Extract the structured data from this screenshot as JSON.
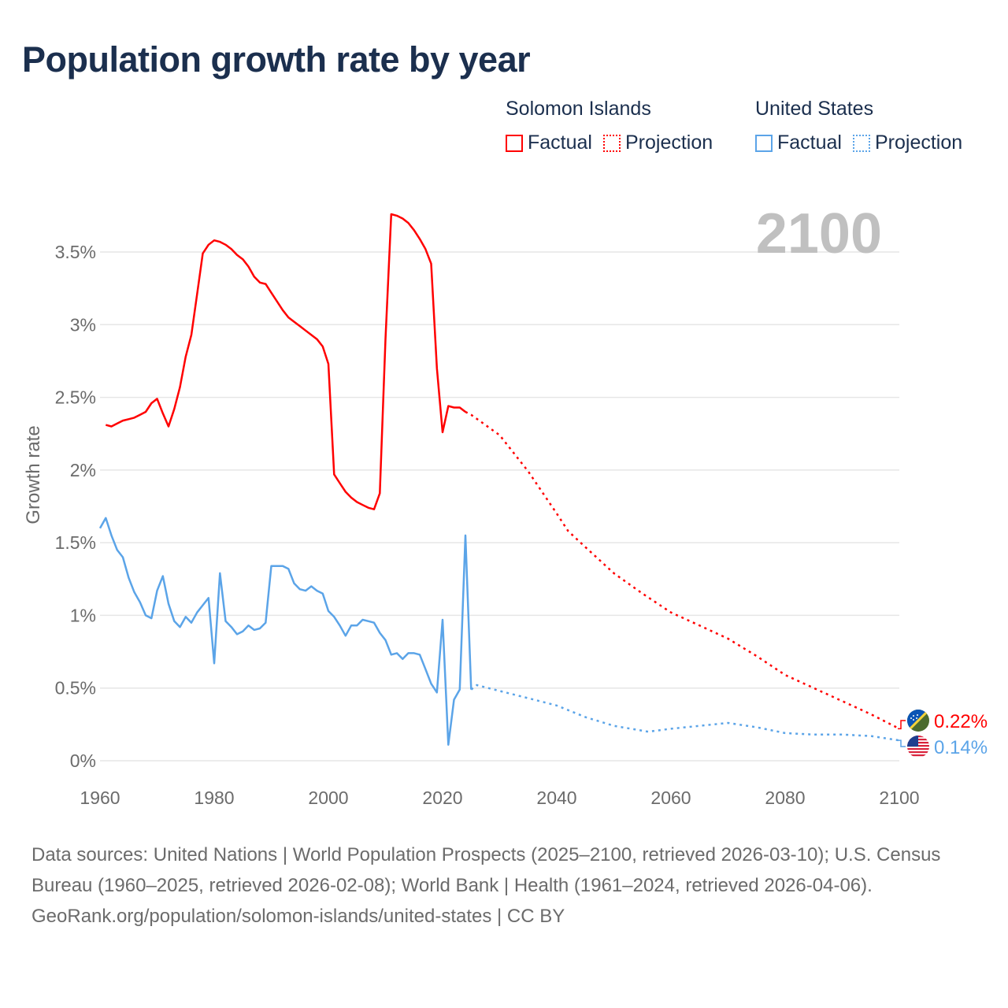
{
  "title": "Population growth rate by year",
  "legend": {
    "groups": [
      {
        "name": "Solomon Islands",
        "factual": "Factual",
        "projection": "Projection",
        "color": "#ff0000"
      },
      {
        "name": "United States",
        "factual": "Factual",
        "projection": "Projection",
        "color": "#5ba4e8"
      }
    ]
  },
  "footer": {
    "sources": "Data sources: United Nations | World Population Prospects (2025–2100, retrieved 2026-03-10); U.S. Census Bureau (1960–2025, retrieved 2026-02-08); World Bank | Health (1961–2024, retrieved 2026-04-06).",
    "credit": "GeoRank.org/population/solomon-islands/united-states | CC BY"
  },
  "chart_data": {
    "type": "line",
    "title": "Population growth rate by year",
    "ylabel": "Growth rate",
    "xlabel": "",
    "current_year_label": "2100",
    "xlim": [
      1960,
      2100
    ],
    "ylim": [
      0,
      3.5
    ],
    "x_ticks": [
      "1960",
      "1980",
      "2000",
      "2020",
      "2040",
      "2060",
      "2080",
      "2100"
    ],
    "y_ticks": [
      "0%",
      "0.5%",
      "1%",
      "1.5%",
      "2%",
      "2.5%",
      "3%",
      "3.5%"
    ],
    "grid": true,
    "series": [
      {
        "name": "Solomon Islands",
        "color": "#ff0000",
        "end_label": "0.22%",
        "factual": {
          "x": [
            1961,
            1962,
            1963,
            1964,
            1965,
            1966,
            1967,
            1968,
            1969,
            1970,
            1971,
            1972,
            1973,
            1974,
            1975,
            1976,
            1977,
            1978,
            1979,
            1980,
            1981,
            1982,
            1983,
            1984,
            1985,
            1986,
            1987,
            1988,
            1989,
            1990,
            1991,
            1992,
            1993,
            1994,
            1995,
            1996,
            1997,
            1998,
            1999,
            2000,
            2001,
            2002,
            2003,
            2004,
            2005,
            2006,
            2007,
            2008,
            2009,
            2010,
            2011,
            2012,
            2013,
            2014,
            2015,
            2016,
            2017,
            2018,
            2019,
            2020,
            2021,
            2022,
            2023,
            2024
          ],
          "y": [
            2.31,
            2.3,
            2.32,
            2.34,
            2.35,
            2.36,
            2.38,
            2.4,
            2.46,
            2.49,
            2.39,
            2.3,
            2.42,
            2.57,
            2.78,
            2.93,
            3.21,
            3.49,
            3.55,
            3.58,
            3.57,
            3.55,
            3.52,
            3.48,
            3.45,
            3.4,
            3.33,
            3.29,
            3.28,
            3.22,
            3.16,
            3.1,
            3.05,
            3.02,
            2.99,
            2.96,
            2.93,
            2.9,
            2.85,
            2.73,
            1.97,
            1.91,
            1.85,
            1.81,
            1.78,
            1.76,
            1.74,
            1.73,
            1.84,
            2.9,
            3.76,
            3.75,
            3.73,
            3.7,
            3.65,
            3.59,
            3.52,
            3.42,
            2.7,
            2.26,
            2.44,
            2.43,
            2.43,
            2.4
          ]
        },
        "projection": {
          "x": [
            2024,
            2025,
            2030,
            2035,
            2040,
            2042,
            2045,
            2050,
            2055,
            2060,
            2065,
            2070,
            2075,
            2080,
            2085,
            2090,
            2095,
            2100
          ],
          "y": [
            2.4,
            2.38,
            2.24,
            1.99,
            1.7,
            1.58,
            1.47,
            1.29,
            1.15,
            1.02,
            0.93,
            0.84,
            0.72,
            0.59,
            0.5,
            0.41,
            0.32,
            0.22
          ]
        }
      },
      {
        "name": "United States",
        "color": "#5ba4e8",
        "end_label": "0.14%",
        "factual": {
          "x": [
            1960,
            1961,
            1962,
            1963,
            1964,
            1965,
            1966,
            1967,
            1968,
            1969,
            1970,
            1971,
            1972,
            1973,
            1974,
            1975,
            1976,
            1977,
            1978,
            1979,
            1980,
            1981,
            1982,
            1983,
            1984,
            1985,
            1986,
            1987,
            1988,
            1989,
            1990,
            1991,
            1992,
            1993,
            1994,
            1995,
            1996,
            1997,
            1998,
            1999,
            2000,
            2001,
            2002,
            2003,
            2004,
            2005,
            2006,
            2007,
            2008,
            2009,
            2010,
            2011,
            2012,
            2013,
            2014,
            2015,
            2016,
            2017,
            2018,
            2019,
            2020,
            2021,
            2022,
            2023,
            2024,
            2025
          ],
          "y": [
            1.6,
            1.67,
            1.55,
            1.45,
            1.4,
            1.26,
            1.16,
            1.09,
            1.0,
            0.98,
            1.17,
            1.27,
            1.08,
            0.96,
            0.92,
            0.99,
            0.95,
            1.02,
            1.07,
            1.12,
            0.67,
            1.29,
            0.96,
            0.92,
            0.87,
            0.89,
            0.93,
            0.9,
            0.91,
            0.95,
            1.34,
            1.34,
            1.34,
            1.32,
            1.22,
            1.18,
            1.17,
            1.2,
            1.17,
            1.15,
            1.03,
            0.99,
            0.93,
            0.86,
            0.93,
            0.93,
            0.97,
            0.96,
            0.95,
            0.88,
            0.83,
            0.73,
            0.74,
            0.7,
            0.74,
            0.74,
            0.73,
            0.63,
            0.53,
            0.47,
            0.97,
            0.11,
            0.42,
            0.49,
            1.55,
            0.49
          ]
        },
        "projection": {
          "x": [
            2025,
            2026,
            2030,
            2035,
            2040,
            2045,
            2050,
            2056,
            2060,
            2065,
            2070,
            2075,
            2080,
            2085,
            2090,
            2095,
            2100
          ],
          "y": [
            0.49,
            0.52,
            0.48,
            0.43,
            0.38,
            0.3,
            0.24,
            0.2,
            0.22,
            0.24,
            0.26,
            0.23,
            0.19,
            0.18,
            0.18,
            0.17,
            0.14
          ]
        }
      }
    ]
  }
}
